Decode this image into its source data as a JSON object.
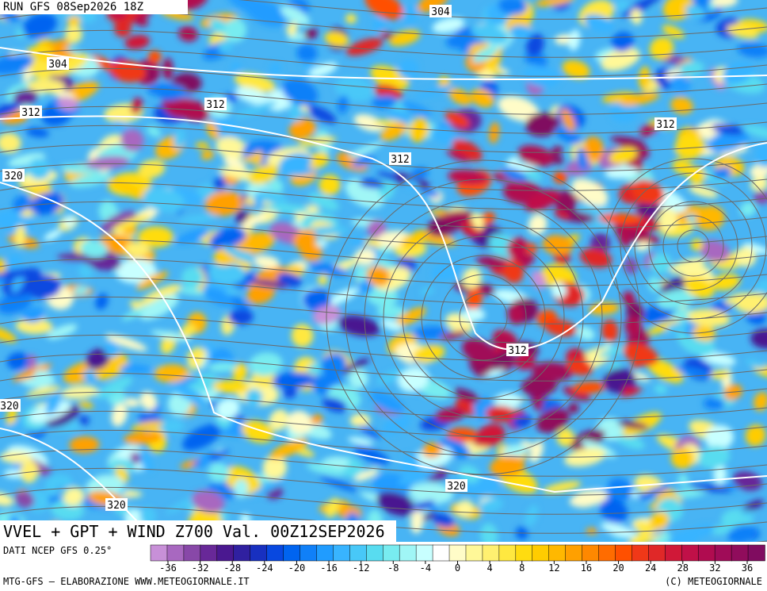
{
  "header": {
    "run": "RUN GFS 08Sep2026 18Z"
  },
  "map": {
    "contour_labels": [
      "304",
      "304",
      "312",
      "312",
      "312",
      "312",
      "312",
      "320",
      "320",
      "320",
      "320"
    ]
  },
  "title": "VVEL + GPT + WIND Z700 Val. 00Z12SEP2026",
  "source": "DATI NCEP GFS 0.25°",
  "colorbar": {
    "ticks": [
      -36,
      -32,
      -28,
      -24,
      -20,
      -16,
      -12,
      -8,
      -4,
      0,
      4,
      8,
      12,
      16,
      20,
      24,
      28,
      32,
      36
    ],
    "colors": [
      "#c890d8",
      "#a868c0",
      "#8848a8",
      "#682898",
      "#4a1890",
      "#3020a0",
      "#1830c0",
      "#0848e0",
      "#0064f0",
      "#1080f8",
      "#209cff",
      "#38b4ff",
      "#48c8f8",
      "#58dcf0",
      "#78ecf0",
      "#a0f6f6",
      "#c8ffff",
      "#ffffff",
      "#fffcc8",
      "#fff898",
      "#fff070",
      "#ffe840",
      "#ffdc10",
      "#ffcc00",
      "#ffb800",
      "#ffa000",
      "#ff8800",
      "#ff6c00",
      "#ff5000",
      "#f03818",
      "#e02828",
      "#d01838",
      "#c01048",
      "#b00c50",
      "#a00c58",
      "#900c5c",
      "#800c60"
    ]
  },
  "footer": {
    "left": "MTG-GFS — ELABORAZIONE WWW.METEOGIORNALE.IT",
    "right": "(C) METEOGIORNALE"
  }
}
